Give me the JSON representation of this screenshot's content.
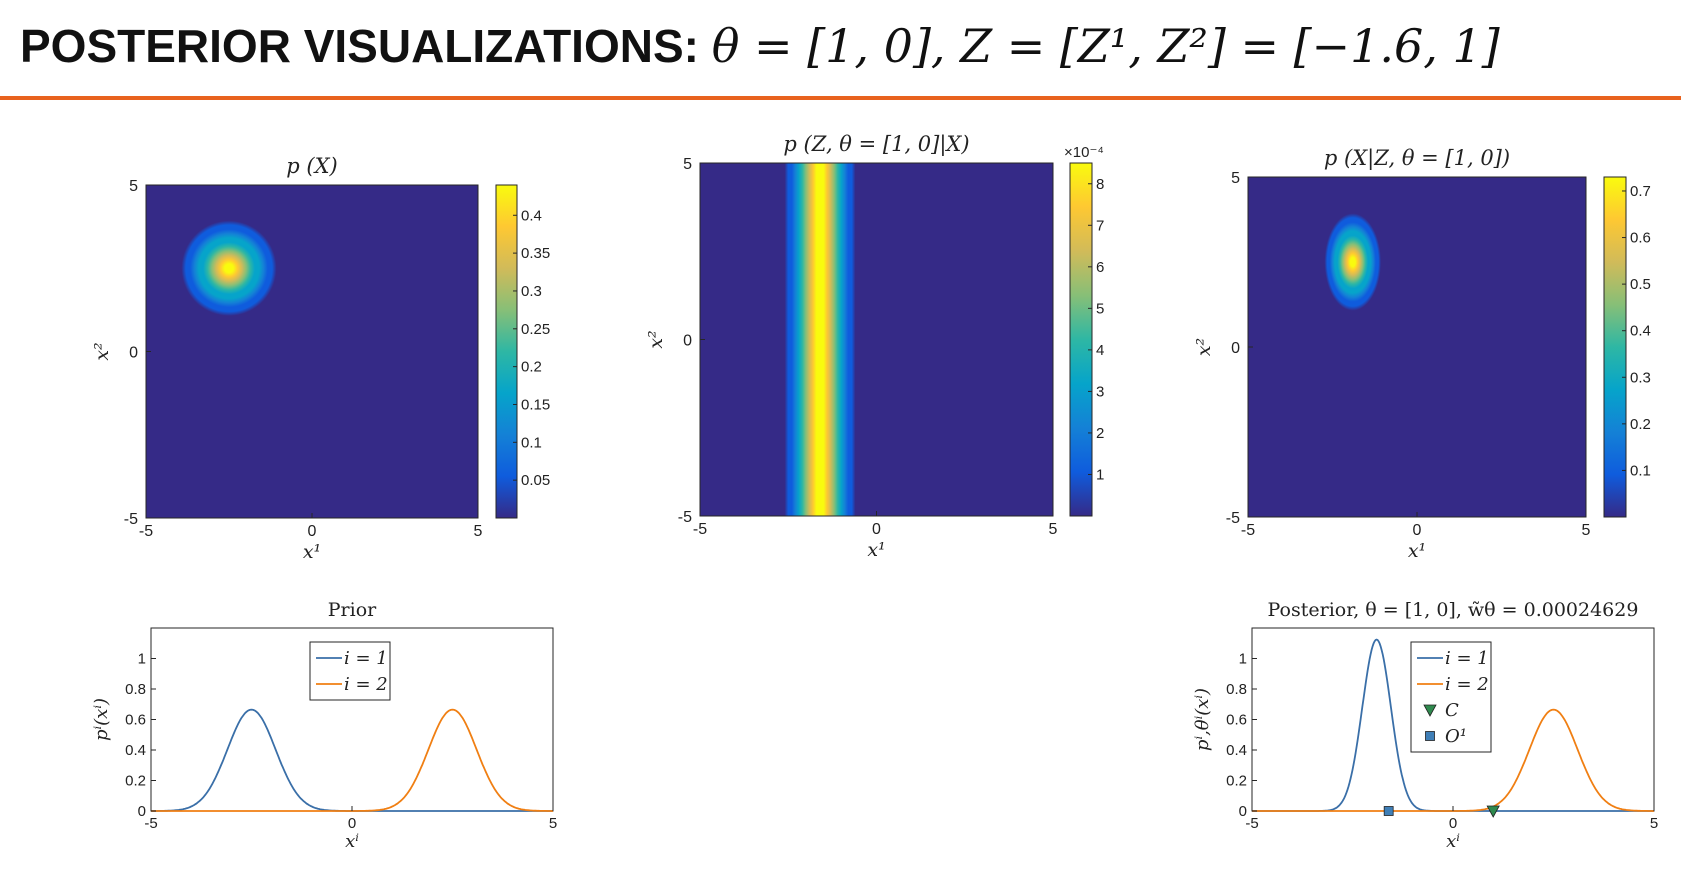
{
  "title": {
    "lead": "POSTERIOR VISUALIZATIONS:",
    "math": "θ = [1, 0], Z = [Z¹, Z²] = [−1.6, 1]"
  },
  "colors": {
    "accent_rule": "#e8621e",
    "series_1": "#3a6fa8",
    "series_2": "#f07f13",
    "marker_c": "#2f8a4e",
    "marker_o": "#3f7fb7",
    "parula": [
      "#352a87",
      "#0f5cdd",
      "#1481d6",
      "#06a4ca",
      "#2eb7a4",
      "#87bf77",
      "#d1bb59",
      "#fec832",
      "#f9fb0e"
    ]
  },
  "chart_data": [
    {
      "id": "heat-prior",
      "type": "heatmap",
      "title": "p (X)",
      "xlabel": "x¹",
      "ylabel": "x²",
      "xlim": [
        -5,
        5
      ],
      "ylim": [
        -5,
        5
      ],
      "xticks": [
        -5,
        0,
        5
      ],
      "yticks": [
        -5,
        0,
        5
      ],
      "colorbar": {
        "ticks": [
          0.05,
          0.1,
          0.15,
          0.2,
          0.25,
          0.3,
          0.35,
          0.4
        ],
        "labels": [
          "0.05",
          "0.1",
          "0.15",
          "0.2",
          "0.25",
          "0.3",
          "0.35",
          "0.4"
        ],
        "max": 0.44
      },
      "blob": {
        "center": [
          -2.5,
          2.5
        ],
        "sigma": [
          0.6,
          0.6
        ],
        "peak": 0.44
      }
    },
    {
      "id": "heat-likelihood",
      "type": "heatmap",
      "title": "p (Z, θ = [1,  0]|X)",
      "xlabel": "x¹",
      "ylabel": "x²",
      "xlim": [
        -5,
        5
      ],
      "ylim": [
        -5,
        5
      ],
      "xticks": [
        -5,
        0,
        5
      ],
      "yticks": [
        -5,
        0,
        5
      ],
      "colorbar": {
        "ticks": [
          1,
          2,
          3,
          4,
          5,
          6,
          7,
          8
        ],
        "labels": [
          "1",
          "2",
          "3",
          "4",
          "5",
          "6",
          "7",
          "8"
        ],
        "max": 8.5,
        "exponent": "×10⁻⁴"
      },
      "band": {
        "center": -1.6,
        "sigma": 0.4,
        "peak": 8.5
      }
    },
    {
      "id": "heat-posterior",
      "type": "heatmap",
      "title": "p (X|Z, θ = [1,  0])",
      "xlabel": "x¹",
      "ylabel": "x²",
      "xlim": [
        -5,
        5
      ],
      "ylim": [
        -5,
        5
      ],
      "xticks": [
        -5,
        0,
        5
      ],
      "yticks": [
        -5,
        0,
        5
      ],
      "colorbar": {
        "ticks": [
          0.1,
          0.2,
          0.3,
          0.4,
          0.5,
          0.6,
          0.7
        ],
        "labels": [
          "0.1",
          "0.2",
          "0.3",
          "0.4",
          "0.5",
          "0.6",
          "0.7"
        ],
        "max": 0.73
      },
      "blob": {
        "center": [
          -1.9,
          2.5
        ],
        "sigma": [
          0.35,
          0.6
        ],
        "peak": 0.73
      }
    },
    {
      "id": "line-prior",
      "type": "line",
      "title": "Prior",
      "xlabel": "xⁱ",
      "ylabel": "pⁱ(xⁱ)",
      "xlim": [
        -5,
        5
      ],
      "ylim": [
        0,
        1.2
      ],
      "xticks": [
        -5,
        0,
        5
      ],
      "yticks": [
        0,
        0.2,
        0.4,
        0.6,
        0.8,
        1
      ],
      "legend": "top-center",
      "series": [
        {
          "name": "i = 1",
          "mean": -2.5,
          "sigma": 0.6,
          "color": "#3a6fa8"
        },
        {
          "name": "i = 2",
          "mean": 2.5,
          "sigma": 0.6,
          "color": "#f07f13"
        }
      ]
    },
    {
      "id": "line-posterior",
      "type": "line",
      "title": "Posterior, θ = [1,  0], w̃θ = 0.00024629",
      "xlabel": "xⁱ",
      "ylabel": "pⁱ,θⁱ(xⁱ)",
      "xlim": [
        -5,
        5
      ],
      "ylim": [
        0,
        1.2
      ],
      "xticks": [
        -5,
        0,
        5
      ],
      "yticks": [
        0,
        0.2,
        0.4,
        0.6,
        0.8,
        1
      ],
      "legend": "top-center",
      "series": [
        {
          "name": "i = 1",
          "mean": -1.9,
          "sigma": 0.355,
          "color": "#3a6fa8"
        },
        {
          "name": "i = 2",
          "mean": 2.5,
          "sigma": 0.6,
          "color": "#f07f13"
        }
      ],
      "markers": [
        {
          "name": "C",
          "shape": "triangle-down",
          "x": 1,
          "y": 0,
          "color": "#2f8a4e"
        },
        {
          "name": "O¹",
          "shape": "square",
          "x": -1.6,
          "y": 0,
          "color": "#3f7fb7"
        }
      ]
    }
  ]
}
